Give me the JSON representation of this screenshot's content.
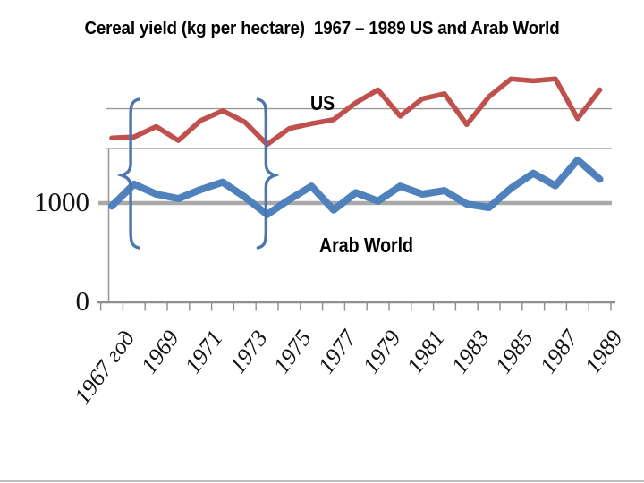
{
  "title": "Cereal yield (kg per hectare)  1967 – 1989 US and Arab World",
  "colors": {
    "background": "#ffffff",
    "title_text": "#000000",
    "axis_label_text": "#141414",
    "gridline_thin": "#9a9a9a",
    "gridline_thick": "#a9a9a9",
    "axis_gray": "#8f8f8f",
    "slide_edge": "#bdbdbd"
  },
  "chart_data": {
    "type": "line",
    "title": "Cereal yield (kg per hectare)  1967 – 1989 US and Arab World",
    "ylabel": "kg per hectare",
    "x": [
      1967,
      1968,
      1969,
      1970,
      1971,
      1972,
      1973,
      1974,
      1975,
      1976,
      1977,
      1978,
      1979,
      1980,
      1981,
      1982,
      1983,
      1984,
      1985,
      1986,
      1987,
      1988,
      1989
    ],
    "series": [
      {
        "name": "US",
        "color": "#C0504D",
        "values": [
          1655,
          1665,
          1770,
          1630,
          1830,
          1930,
          1815,
          1590,
          1750,
          1800,
          1840,
          2010,
          2140,
          1875,
          2050,
          2100,
          1790,
          2070,
          2250,
          2230,
          2250,
          1850,
          2140
        ]
      },
      {
        "name": "Arab World",
        "color": "#4F81BD",
        "values": [
          970,
          1190,
          1090,
          1045,
          1135,
          1210,
          1060,
          885,
          1035,
          1170,
          930,
          1105,
          1020,
          1170,
          1090,
          1125,
          990,
          955,
          1150,
          1300,
          1175,
          1435,
          1240
        ]
      }
    ],
    "ylim": [
      0,
      2300
    ],
    "y_axis_labels": [
      {
        "value": 1000,
        "text": "1000"
      },
      {
        "value": 0,
        "text": "0"
      }
    ],
    "unlabeled_gridline_values": [
      1550,
      1950
    ],
    "grid": "horizontal",
    "legend": "inline-labels",
    "x_tick_labels": [
      {
        "year": 1967,
        "text": "1967 год"
      },
      {
        "year": 1969,
        "text": "1969"
      },
      {
        "year": 1971,
        "text": "1971"
      },
      {
        "year": 1973,
        "text": "1973"
      },
      {
        "year": 1975,
        "text": "1975"
      },
      {
        "year": 1977,
        "text": "1977"
      },
      {
        "year": 1979,
        "text": "1979"
      },
      {
        "year": 1981,
        "text": "1981"
      },
      {
        "year": 1983,
        "text": "1983"
      },
      {
        "year": 1985,
        "text": "1985"
      },
      {
        "year": 1987,
        "text": "1987"
      },
      {
        "year": 1989,
        "text": "1989"
      }
    ],
    "annotations": [
      {
        "type": "curly-brace",
        "glyph": "{",
        "at_year": 1967.85,
        "color": "#4d74ad"
      },
      {
        "type": "curly-brace",
        "glyph": "}",
        "at_year": 1973.95,
        "color": "#4d74ad"
      }
    ]
  }
}
